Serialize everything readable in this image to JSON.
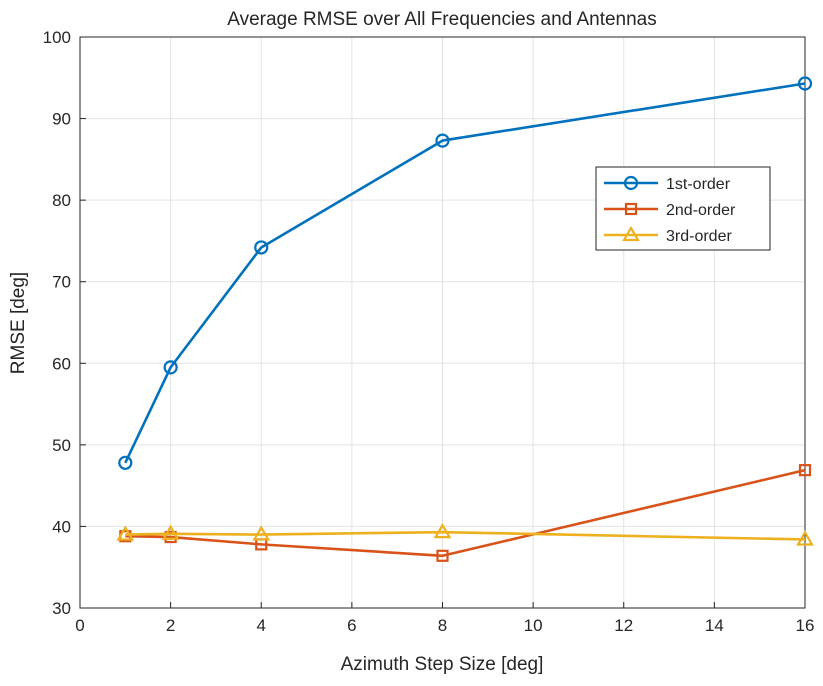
{
  "chart_data": {
    "type": "line",
    "title": "Average RMSE over All Frequencies and Antennas",
    "xlabel": "Azimuth Step Size [deg]",
    "ylabel": "RMSE [deg]",
    "xlim": [
      0,
      16
    ],
    "ylim": [
      30,
      100
    ],
    "xticks": [
      0,
      2,
      4,
      6,
      8,
      10,
      12,
      14,
      16
    ],
    "yticks": [
      30,
      40,
      50,
      60,
      70,
      80,
      90,
      100
    ],
    "grid": true,
    "legend_position": "upper-right",
    "x": [
      1,
      2,
      4,
      8,
      16
    ],
    "series": [
      {
        "name": "1st-order",
        "color": "#0072BD",
        "marker": "circle",
        "values": [
          47.8,
          59.5,
          74.2,
          87.3,
          94.3
        ]
      },
      {
        "name": "2nd-order",
        "color": "#D95319",
        "marker": "square",
        "values": [
          38.8,
          38.7,
          37.8,
          36.4,
          46.9
        ]
      },
      {
        "name": "3rd-order",
        "color": "#EDB120",
        "marker": "triangle",
        "values": [
          39.0,
          39.1,
          39.0,
          39.3,
          38.4
        ]
      }
    ]
  }
}
